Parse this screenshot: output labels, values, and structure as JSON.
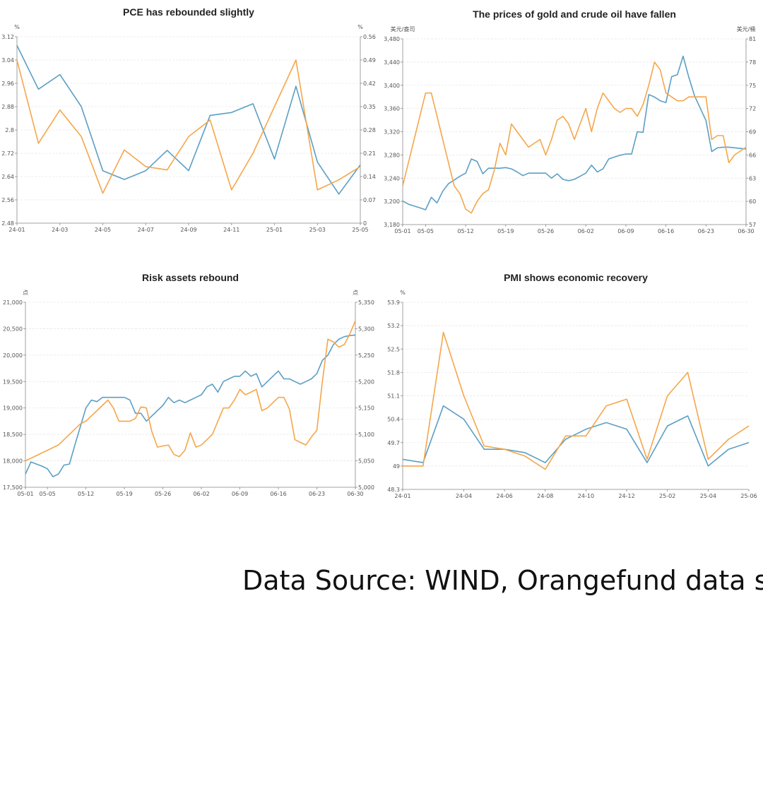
{
  "colors": {
    "blue": "#5b9fc4",
    "orange": "#f5a64a",
    "grid": "#e6e6e6",
    "axis": "#888888"
  },
  "source_text": "Data Source: WIND, Orangefund data sea",
  "chart_data": [
    {
      "type": "line",
      "title": "PCE has rebounded slightly",
      "left_unit": "%",
      "right_unit": "%",
      "x_count": 17,
      "x_ticks": [
        [
          0,
          "24-01"
        ],
        [
          2,
          "24-03"
        ],
        [
          4,
          "24-05"
        ],
        [
          6,
          "24-07"
        ],
        [
          8,
          "24-09"
        ],
        [
          10,
          "24-11"
        ],
        [
          12,
          "25-01"
        ],
        [
          14,
          "25-03"
        ],
        [
          16,
          "25-05"
        ]
      ],
      "y_left": {
        "min": 2.48,
        "max": 3.12,
        "ticks": [
          "3.12",
          "3.04",
          "2.96",
          "2.88",
          "2.8",
          "2.72",
          "2.64",
          "2.56",
          "2.48"
        ]
      },
      "y_right": {
        "min": 0,
        "max": 0.56,
        "ticks": [
          "0.56",
          "0.49",
          "0.42",
          "0.35",
          "0.28",
          "0.21",
          "0.14",
          "0.07",
          "0"
        ]
      },
      "series": [
        {
          "name": "blue",
          "axis": "left",
          "values": [
            3.09,
            2.94,
            2.99,
            2.88,
            2.66,
            2.63,
            2.66,
            2.73,
            2.66,
            2.85,
            2.86,
            2.89,
            2.7,
            2.95,
            2.69,
            2.58,
            2.68
          ]
        },
        {
          "name": "orange",
          "axis": "right",
          "values": [
            0.49,
            0.24,
            0.34,
            0.26,
            0.09,
            0.22,
            0.17,
            0.16,
            0.26,
            0.31,
            0.1,
            0.21,
            0.35,
            0.49,
            0.1,
            0.13,
            0.17
          ]
        }
      ]
    },
    {
      "type": "line",
      "title": "The prices of gold and crude oil have fallen",
      "left_unit": "美元/盎司",
      "right_unit": "美元/桶",
      "x_count": 61,
      "x_ticks": [
        [
          0,
          "05-01"
        ],
        [
          4,
          "05-05"
        ],
        [
          11,
          "05-12"
        ],
        [
          18,
          "05-19"
        ],
        [
          25,
          "05-26"
        ],
        [
          32,
          "06-02"
        ],
        [
          39,
          "06-09"
        ],
        [
          46,
          "06-16"
        ],
        [
          53,
          "06-23"
        ],
        [
          60,
          "06-30"
        ]
      ],
      "y_left": {
        "min": 3180,
        "max": 3480,
        "ticks": [
          "3,480",
          "3,440",
          "3,400",
          "3,360",
          "3,320",
          "3,280",
          "3,240",
          "3,200",
          "3,180"
        ]
      },
      "y_right": {
        "min": 57,
        "max": 81,
        "ticks": [
          "81",
          "78",
          "75",
          "72",
          "69",
          "66",
          "63",
          "60",
          "57"
        ]
      },
      "series": [
        {
          "name": "blue",
          "axis": "left",
          "values": [
            3218,
            3213,
            3210,
            3207,
            3204,
            3224,
            3215,
            3234,
            3246,
            3252,
            3258,
            3263,
            3286,
            3282,
            3262,
            3271,
            3271,
            3271,
            3272,
            3270,
            3265,
            3259,
            3263,
            3263,
            3263,
            3263,
            3255,
            3262,
            3253,
            3251,
            3253,
            3258,
            3263,
            3276,
            3265,
            3270,
            3286,
            3289,
            3292,
            3294,
            3294,
            3330,
            3329,
            3390,
            3386,
            3380,
            3377,
            3419,
            3422,
            3452,
            3418,
            3388,
            3368,
            3348,
            3298,
            3304,
            3305,
            3305,
            3304,
            3303,
            3302
          ]
        },
        {
          "name": "orange",
          "axis": "right",
          "values": [
            62,
            65,
            68,
            71,
            74,
            74,
            71,
            68,
            65,
            62,
            61,
            59,
            58.5,
            60,
            61,
            61.5,
            64,
            67.5,
            66,
            70,
            69,
            68,
            67,
            67.5,
            68,
            66,
            68,
            70.5,
            71,
            70,
            68,
            70,
            72,
            69,
            72,
            74,
            73,
            72,
            71.5,
            72,
            72,
            71,
            72.5,
            75,
            78,
            77,
            74,
            73.5,
            73,
            73,
            73.5,
            73.5,
            73.5,
            73.5,
            68,
            68.5,
            68.5,
            65,
            66,
            66.5,
            67
          ]
        }
      ]
    },
    {
      "type": "line",
      "title": "Risk assets rebound",
      "left_unit": "点",
      "right_unit": "点",
      "x_count": 61,
      "x_ticks": [
        [
          0,
          "05-01"
        ],
        [
          4,
          "05-05"
        ],
        [
          11,
          "05-12"
        ],
        [
          18,
          "05-19"
        ],
        [
          25,
          "05-26"
        ],
        [
          32,
          "06-02"
        ],
        [
          39,
          "06-09"
        ],
        [
          46,
          "06-16"
        ],
        [
          53,
          "06-23"
        ],
        [
          60,
          "06-30"
        ]
      ],
      "y_left": {
        "min": 17500,
        "max": 21000,
        "ticks": [
          "21,000",
          "20,500",
          "20,000",
          "19,500",
          "19,000",
          "18,500",
          "18,000",
          "17,500"
        ]
      },
      "y_right": {
        "min": 5000,
        "max": 5350,
        "ticks": [
          "5,350",
          "5,300",
          "5,250",
          "5,200",
          "5,150",
          "5,100",
          "5,050",
          "5,000"
        ]
      },
      "series": [
        {
          "name": "blue",
          "axis": "left",
          "values": [
            17750,
            17980,
            17940,
            17900,
            17850,
            17700,
            17750,
            17920,
            17940,
            18300,
            18650,
            19000,
            19150,
            19120,
            19200,
            19200,
            19200,
            19200,
            19200,
            19150,
            18900,
            18900,
            18750,
            18850,
            18950,
            19050,
            19200,
            19100,
            19150,
            19100,
            19150,
            19200,
            19250,
            19400,
            19450,
            19300,
            19500,
            19550,
            19600,
            19600,
            19700,
            19600,
            19650,
            19400,
            19500,
            19600,
            19700,
            19550,
            19550,
            19500,
            19450,
            19500,
            19550,
            19650,
            19900,
            20000,
            20200,
            20300,
            20350,
            20370,
            20380
          ]
        },
        {
          "name": "orange",
          "axis": "right",
          "values": [
            5050,
            5055,
            5060,
            5065,
            5070,
            5075,
            5080,
            5090,
            5100,
            5110,
            5120,
            5125,
            5135,
            5145,
            5155,
            5165,
            5150,
            5125,
            5125,
            5125,
            5130,
            5152,
            5150,
            5105,
            5076,
            5078,
            5080,
            5062,
            5058,
            5070,
            5103,
            5076,
            5080,
            5090,
            5100,
            5125,
            5150,
            5150,
            5165,
            5185,
            5175,
            5180,
            5185,
            5145,
            5150,
            5160,
            5170,
            5170,
            5148,
            5090,
            5085,
            5080,
            5095,
            5108,
            5200,
            5280,
            5275,
            5265,
            5270,
            5290,
            5315
          ]
        }
      ]
    },
    {
      "type": "line",
      "title": "PMI shows economic recovery",
      "left_unit": "%",
      "x_count": 18,
      "x_ticks": [
        [
          0,
          "24-01"
        ],
        [
          3,
          "24-04"
        ],
        [
          5,
          "24-06"
        ],
        [
          7,
          "24-08"
        ],
        [
          9,
          "24-10"
        ],
        [
          11,
          "24-12"
        ],
        [
          13,
          "25-02"
        ],
        [
          15,
          "25-04"
        ],
        [
          17,
          "25-06"
        ]
      ],
      "y_left": {
        "min": 48.3,
        "max": 53.9,
        "ticks": [
          "53.9",
          "53.2",
          "52.5",
          "51.8",
          "51.1",
          "50.4",
          "49.7",
          "49",
          "48.3"
        ]
      },
      "series": [
        {
          "name": "blue",
          "axis": "left",
          "values": [
            49.2,
            49.1,
            50.8,
            50.4,
            49.5,
            49.5,
            49.4,
            49.1,
            49.8,
            50.1,
            50.3,
            50.1,
            49.1,
            50.2,
            50.5,
            49.0,
            49.5,
            49.7
          ]
        },
        {
          "name": "orange",
          "axis": "left",
          "values": [
            49.0,
            49.0,
            53.0,
            51.1,
            49.6,
            49.5,
            49.3,
            48.9,
            49.9,
            49.9,
            50.8,
            51.0,
            49.2,
            51.1,
            51.8,
            49.2,
            49.8,
            50.2
          ]
        }
      ]
    }
  ]
}
